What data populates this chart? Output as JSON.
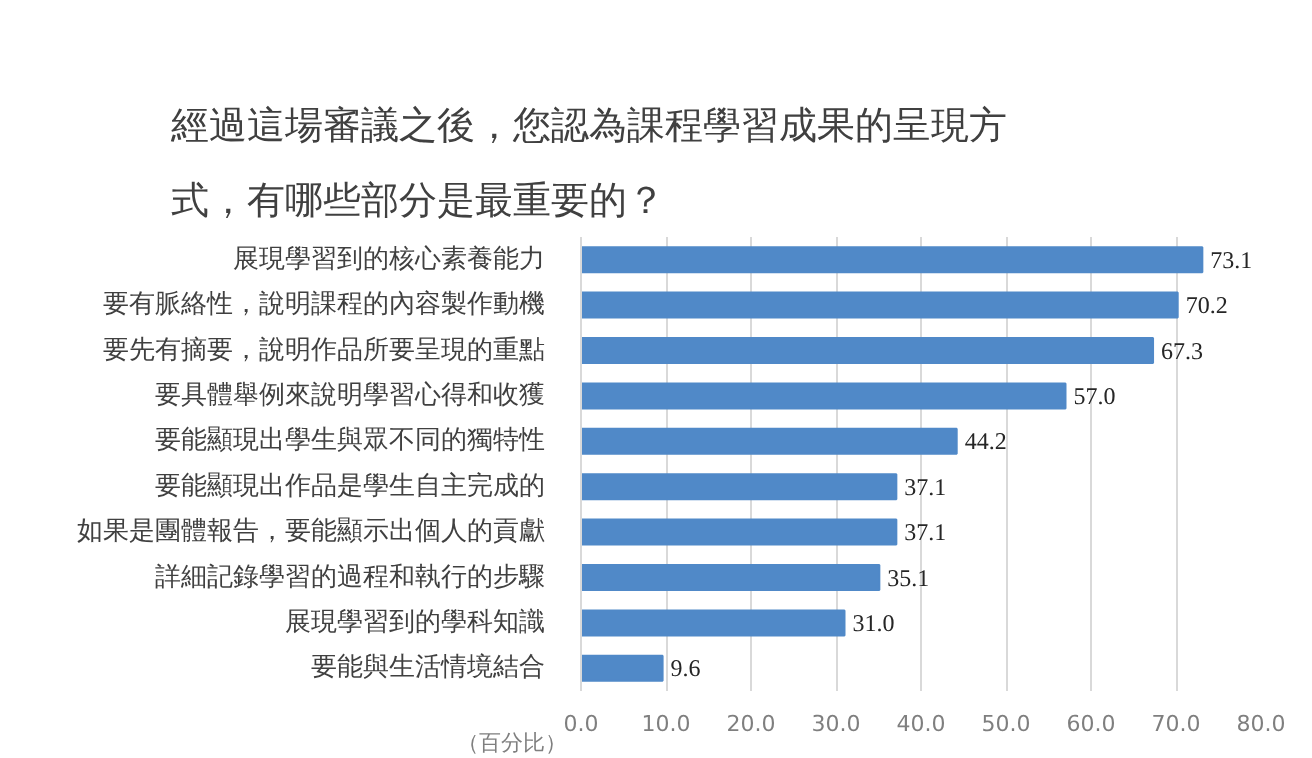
{
  "chart_data": {
    "type": "bar",
    "orientation": "horizontal",
    "title": "經過這場審議之後，您認為課程學習成果的呈現方式，有哪些部分是最重要的？",
    "xlabel": "（百分比）",
    "categories": [
      "展現學習到的核心素養能力",
      "要有脈絡性，說明課程的內容製作動機",
      "要先有摘要，說明作品所要呈現的重點",
      "要具體舉例來說明學習心得和收獲",
      "要能顯現出學生與眾不同的獨特性",
      "要能顯現出作品是學生自主完成的",
      "如果是團體報告，要能顯示出個人的貢獻",
      "詳細記錄學習的過程和執行的步驟",
      "展現學習到的學科知識",
      "要能與生活情境結合"
    ],
    "values": [
      73.1,
      70.2,
      67.3,
      57.0,
      44.2,
      37.1,
      37.1,
      35.1,
      31.0,
      9.6
    ],
    "value_labels": [
      "73.1",
      "70.2",
      "67.3",
      "57.0",
      "44.2",
      "37.1",
      "37.1",
      "35.1",
      "31.0",
      "9.6"
    ],
    "color": "#5089c8",
    "xlim": [
      0,
      80
    ],
    "xticks": [
      {
        "value": 0,
        "label": "0.0"
      },
      {
        "value": 10,
        "label": "10.0"
      },
      {
        "value": 20,
        "label": "20.0"
      },
      {
        "value": 30,
        "label": "30.0"
      },
      {
        "value": 40,
        "label": "40.0"
      },
      {
        "value": 50,
        "label": "50.0"
      },
      {
        "value": 60,
        "label": "60.0"
      },
      {
        "value": 70,
        "label": "70.0"
      },
      {
        "value": 80,
        "label": "80.0"
      }
    ],
    "grid": "x"
  }
}
